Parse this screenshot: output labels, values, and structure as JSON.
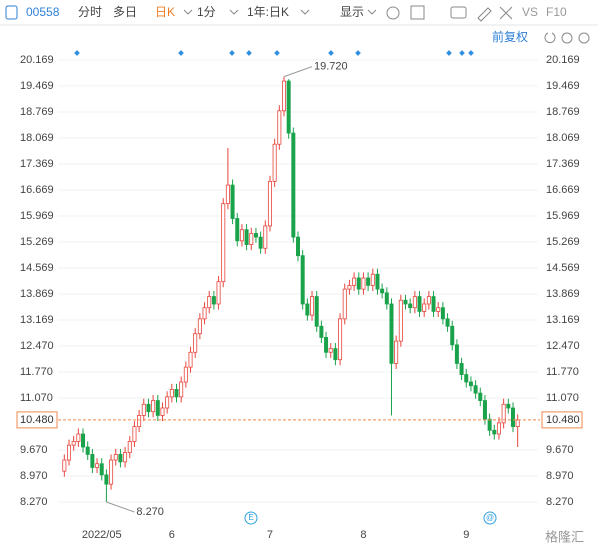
{
  "chart_data": {
    "type": "candlestick",
    "header": {
      "code": "00558",
      "tabs": [
        "分时",
        "多日",
        "日K",
        "1分",
        "1年:日K",
        "显示"
      ],
      "active_tab": 2,
      "compare": "VS",
      "f10": "F10",
      "adjust": "前复权"
    },
    "categories": [
      null,
      null,
      null,
      null,
      null,
      null,
      null,
      null,
      "2022/05",
      null,
      null,
      null,
      null,
      null,
      null,
      null,
      null,
      null,
      null,
      null,
      null,
      null,
      null,
      "6",
      null,
      null,
      null,
      null,
      null,
      null,
      null,
      null,
      null,
      null,
      null,
      null,
      null,
      null,
      null,
      null,
      null,
      null,
      null,
      null,
      "7",
      null,
      null,
      null,
      null,
      null,
      null,
      null,
      null,
      null,
      null,
      null,
      null,
      null,
      null,
      null,
      null,
      null,
      null,
      null,
      "8",
      null,
      null,
      null,
      null,
      null,
      null,
      null,
      null,
      null,
      null,
      null,
      null,
      null,
      null,
      null,
      null,
      null,
      null,
      null,
      null,
      null,
      "9",
      null,
      null,
      null,
      null,
      null,
      null,
      null,
      null,
      null,
      null,
      null
    ],
    "open": [
      9.1,
      9.4,
      9.8,
      9.9,
      10.1,
      9.75,
      9.55,
      9.2,
      9.3,
      9.0,
      8.75,
      9.4,
      9.55,
      9.35,
      9.6,
      9.9,
      10.3,
      10.6,
      10.9,
      10.7,
      11.0,
      10.6,
      10.8,
      11.1,
      11.3,
      11.1,
      11.5,
      11.9,
      12.3,
      12.8,
      13.2,
      13.5,
      13.8,
      13.6,
      14.2,
      16.3,
      16.8,
      15.9,
      15.3,
      15.6,
      15.2,
      15.5,
      15.4,
      15.1,
      15.7,
      16.9,
      17.9,
      18.8,
      19.6,
      18.2,
      15.4,
      14.9,
      13.6,
      13.3,
      13.8,
      13.0,
      12.7,
      12.3,
      12.4,
      12.1,
      13.2,
      14.0,
      14.1,
      14.3,
      14.0,
      14.3,
      14.1,
      14.4,
      14.0,
      13.9,
      13.6,
      12.0,
      12.6,
      13.7,
      13.6,
      13.5,
      13.8,
      13.4,
      13.6,
      13.8,
      13.4,
      13.5,
      13.2,
      13.0,
      12.5,
      12.0,
      11.7,
      11.5,
      11.4,
      11.2,
      11.0,
      10.5,
      10.2,
      10.1,
      10.4,
      10.9,
      10.8,
      10.3
    ],
    "high": [
      9.55,
      9.95,
      10.05,
      10.25,
      10.25,
      9.9,
      9.7,
      9.45,
      9.45,
      9.15,
      9.55,
      9.7,
      9.7,
      9.75,
      10.05,
      10.45,
      10.75,
      11.05,
      11.05,
      11.15,
      11.15,
      10.95,
      11.25,
      11.45,
      11.45,
      11.65,
      12.05,
      12.45,
      12.95,
      13.35,
      13.65,
      13.95,
      13.95,
      14.35,
      16.45,
      17.8,
      16.95,
      16.05,
      15.75,
      15.75,
      15.65,
      15.65,
      15.55,
      15.85,
      17.05,
      18.05,
      18.95,
      19.72,
      19.65,
      18.35,
      15.55,
      15.05,
      13.75,
      13.95,
      13.95,
      13.15,
      12.85,
      12.55,
      12.55,
      13.35,
      14.15,
      14.25,
      14.45,
      14.45,
      14.45,
      14.45,
      14.55,
      14.55,
      14.15,
      14.05,
      13.75,
      12.75,
      13.85,
      13.85,
      13.75,
      13.95,
      13.95,
      13.75,
      13.95,
      13.95,
      13.65,
      13.65,
      13.35,
      13.15,
      12.65,
      12.15,
      11.85,
      11.65,
      11.55,
      11.35,
      11.15,
      10.65,
      10.35,
      10.55,
      11.05,
      11.05,
      10.95,
      10.63
    ],
    "low": [
      8.95,
      9.25,
      9.65,
      9.75,
      9.6,
      9.4,
      9.05,
      9.05,
      8.85,
      8.27,
      8.6,
      9.25,
      9.2,
      9.2,
      9.45,
      9.75,
      10.15,
      10.45,
      10.55,
      10.55,
      10.45,
      10.45,
      10.65,
      10.95,
      10.95,
      10.95,
      11.35,
      11.75,
      12.15,
      12.65,
      13.05,
      13.35,
      13.45,
      13.45,
      14.05,
      16.15,
      15.75,
      15.15,
      15.15,
      15.05,
      15.05,
      15.25,
      14.95,
      14.95,
      15.55,
      16.75,
      17.75,
      18.65,
      18.05,
      15.25,
      14.75,
      13.45,
      13.15,
      13.15,
      12.85,
      12.55,
      12.15,
      12.15,
      11.95,
      11.95,
      13.05,
      13.85,
      13.95,
      13.85,
      13.85,
      13.95,
      13.95,
      13.85,
      13.75,
      13.45,
      10.6,
      11.85,
      12.45,
      13.45,
      13.35,
      13.35,
      13.25,
      13.25,
      13.45,
      13.25,
      13.25,
      13.05,
      12.85,
      12.35,
      11.85,
      11.55,
      11.35,
      11.25,
      11.05,
      10.85,
      10.35,
      10.05,
      9.95,
      9.95,
      10.25,
      10.65,
      10.15,
      9.75
    ],
    "close": [
      9.4,
      9.8,
      9.9,
      10.1,
      9.75,
      9.55,
      9.2,
      9.3,
      9.0,
      8.75,
      9.4,
      9.55,
      9.35,
      9.6,
      9.9,
      10.3,
      10.6,
      10.9,
      10.7,
      11.0,
      10.6,
      10.8,
      11.1,
      11.3,
      11.1,
      11.5,
      11.9,
      12.3,
      12.8,
      13.2,
      13.5,
      13.8,
      13.6,
      14.2,
      16.3,
      16.8,
      15.9,
      15.3,
      15.6,
      15.2,
      15.5,
      15.4,
      15.1,
      15.7,
      16.9,
      17.9,
      18.8,
      19.6,
      18.2,
      15.4,
      14.9,
      13.6,
      13.3,
      13.8,
      13.0,
      12.7,
      12.3,
      12.4,
      12.1,
      13.2,
      14.0,
      14.1,
      14.3,
      14.0,
      14.3,
      14.1,
      14.4,
      14.0,
      13.9,
      13.6,
      12.0,
      12.6,
      13.7,
      13.6,
      13.5,
      13.8,
      13.4,
      13.6,
      13.8,
      13.4,
      13.5,
      13.2,
      13.0,
      12.5,
      12.0,
      11.7,
      11.5,
      11.4,
      11.2,
      11.0,
      10.5,
      10.2,
      10.1,
      10.4,
      10.9,
      10.8,
      10.3,
      10.48
    ],
    "up_color": "#e8453c",
    "down_color": "#1aa34a",
    "ylim": [
      7.92,
      20.49
    ],
    "yticks": [
      20.169,
      19.469,
      18.769,
      18.069,
      17.369,
      16.669,
      15.969,
      15.269,
      14.569,
      13.869,
      13.169,
      {
        "value": 12.47,
        "label": "12.470"
      },
      {
        "value": 11.77,
        "label": "11.770"
      },
      {
        "value": 11.07,
        "label": "11.070"
      },
      {
        "value": 9.67,
        "label": "9.670"
      },
      {
        "value": 8.97,
        "label": "8.970"
      },
      {
        "value": 8.27,
        "label": "8.270"
      }
    ],
    "last_price": {
      "value": 10.48,
      "label": "10.480"
    },
    "max_label": "19.720",
    "min_label": "8.270",
    "grid": true,
    "watermark": "格隆汇"
  }
}
